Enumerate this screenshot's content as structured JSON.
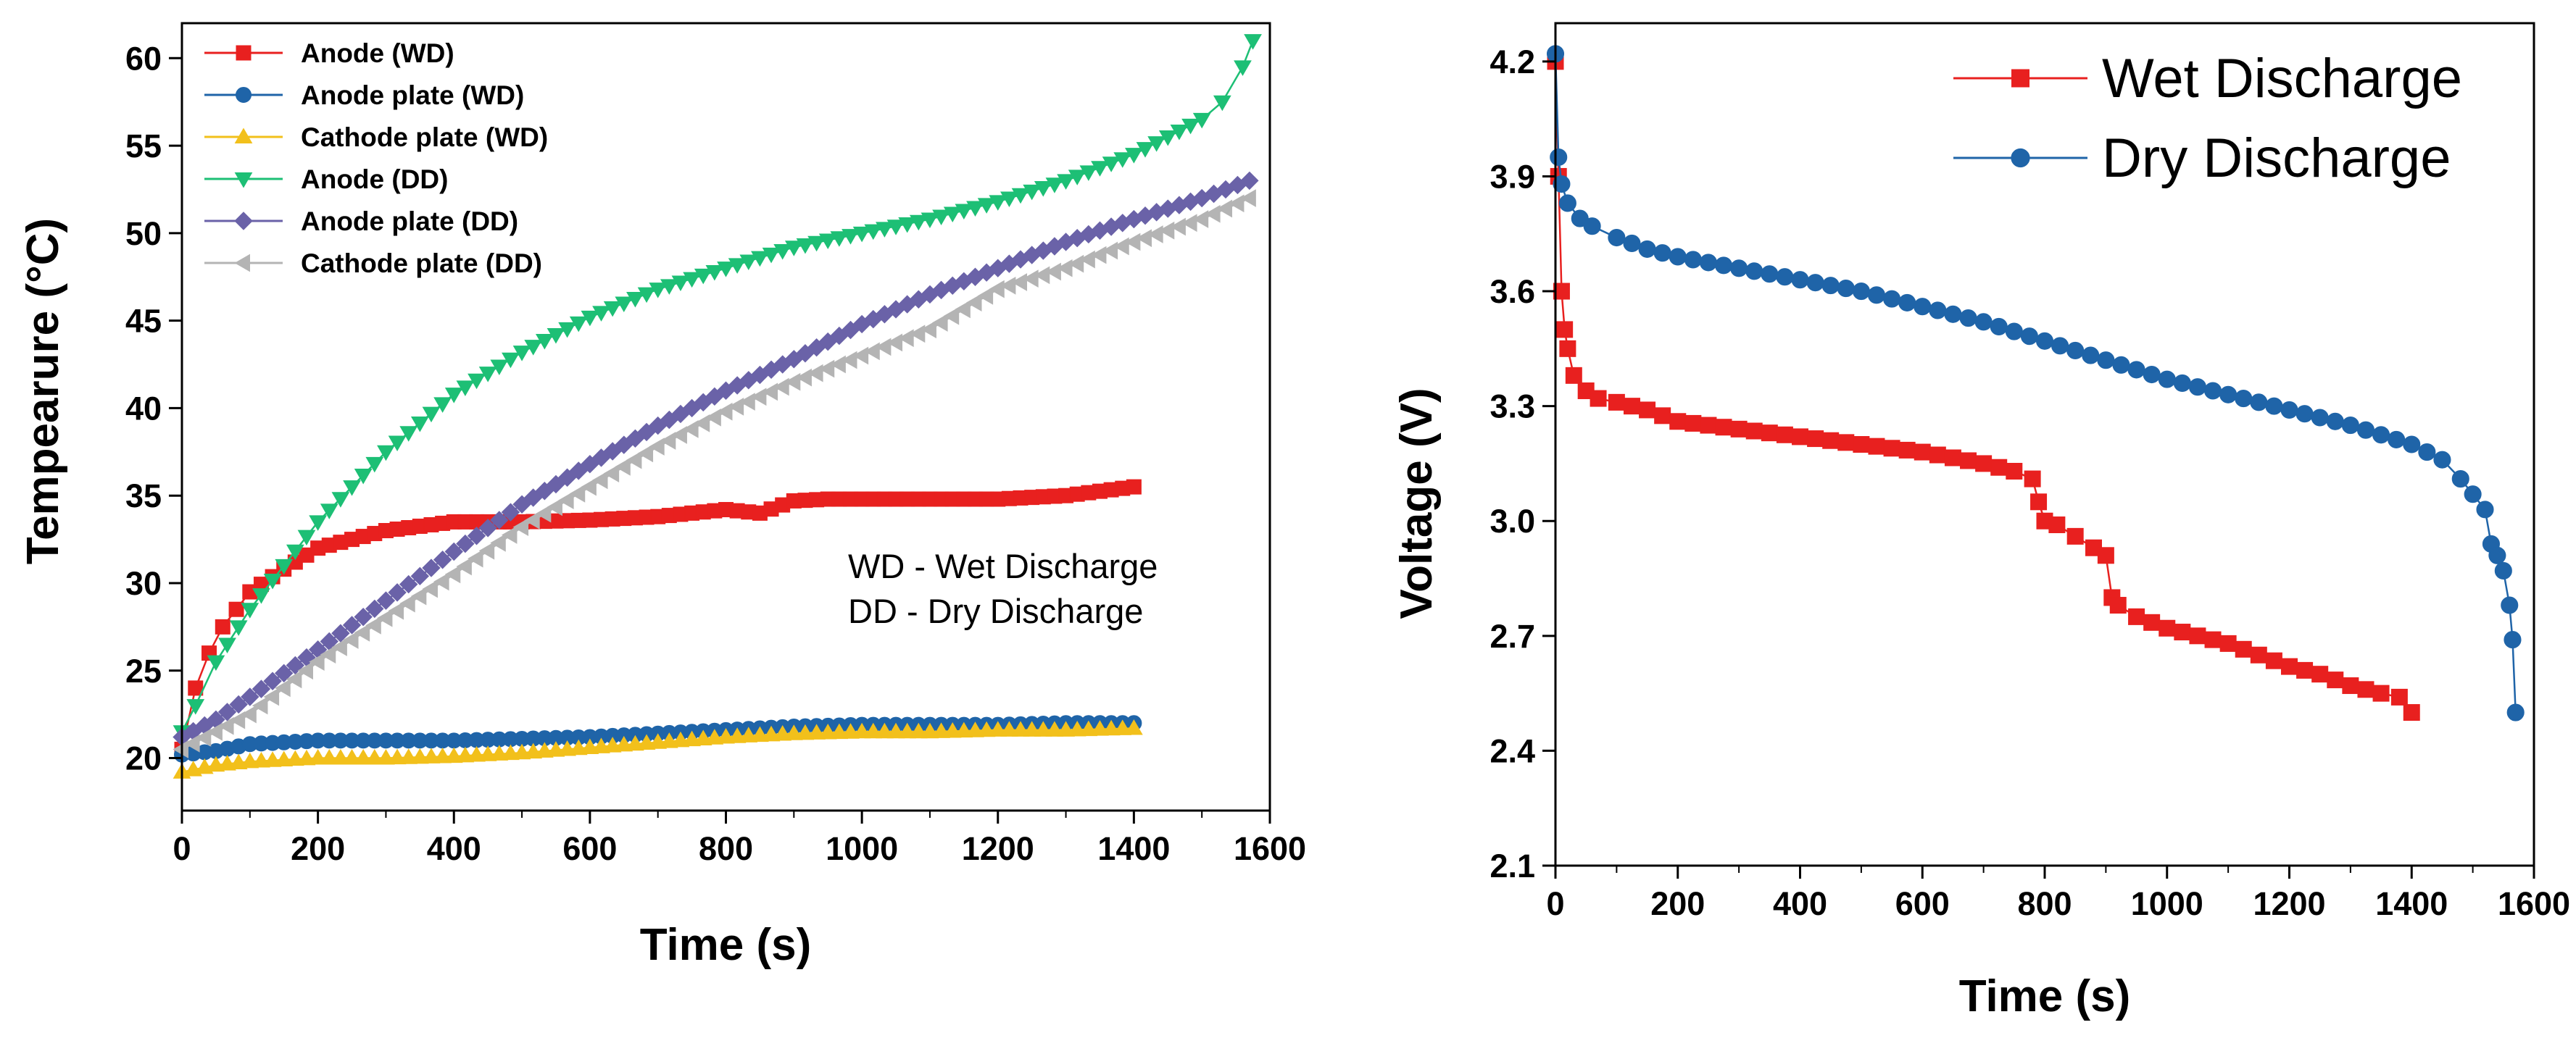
{
  "chart_data": [
    {
      "type": "line",
      "xlabel": "Time (s)",
      "ylabel": "Tempearure (°C)",
      "xlim": [
        0,
        1600
      ],
      "ylim": [
        17,
        62
      ],
      "xticks": [
        0,
        200,
        400,
        600,
        800,
        1000,
        1200,
        1400,
        1600
      ],
      "yticks": [
        20,
        25,
        30,
        35,
        40,
        45,
        50,
        55,
        60
      ],
      "legend_position": "top-left",
      "annotations": [
        "WD - Wet Discharge",
        "DD - Dry Discharge"
      ],
      "series": [
        {
          "name": "Anode (WD)",
          "color": "#e8201f",
          "marker": "square",
          "x": [
            0,
            20,
            40,
            60,
            80,
            100,
            150,
            200,
            300,
            400,
            500,
            600,
            700,
            750,
            800,
            850,
            900,
            950,
            1000,
            1100,
            1200,
            1300,
            1400
          ],
          "y": [
            20.5,
            24,
            26,
            27.5,
            28.5,
            29.5,
            30.8,
            32,
            33,
            33.5,
            33.5,
            33.6,
            33.8,
            34,
            34.2,
            34,
            34.7,
            34.8,
            34.8,
            34.8,
            34.8,
            35,
            35.5
          ]
        },
        {
          "name": "Anode plate (WD)",
          "color": "#1f64a8",
          "marker": "circle",
          "x": [
            0,
            50,
            100,
            200,
            300,
            400,
            500,
            600,
            700,
            800,
            900,
            1000,
            1100,
            1200,
            1300,
            1400
          ],
          "y": [
            20.2,
            20.4,
            20.8,
            21,
            21,
            21,
            21.1,
            21.2,
            21.4,
            21.6,
            21.8,
            21.9,
            21.9,
            21.9,
            22,
            22
          ]
        },
        {
          "name": "Cathode plate (WD)",
          "color": "#f2c01b",
          "marker": "triangle-up",
          "x": [
            0,
            50,
            100,
            200,
            300,
            400,
            500,
            600,
            700,
            800,
            900,
            1000,
            1100,
            1200,
            1300,
            1400
          ],
          "y": [
            19.2,
            19.6,
            19.8,
            20,
            20,
            20.1,
            20.3,
            20.6,
            20.9,
            21.2,
            21.4,
            21.5,
            21.5,
            21.6,
            21.6,
            21.7
          ]
        },
        {
          "name": "Anode (DD)",
          "color": "#1dbf75",
          "marker": "triangle-down",
          "x": [
            0,
            20,
            50,
            100,
            150,
            200,
            300,
            400,
            500,
            600,
            700,
            800,
            900,
            1000,
            1100,
            1200,
            1300,
            1400,
            1450,
            1500,
            1530,
            1560,
            1575
          ],
          "y": [
            21.5,
            23,
            25.5,
            28.5,
            31,
            33.5,
            37.5,
            40.8,
            43.2,
            45.2,
            46.8,
            48,
            49.2,
            50,
            50.8,
            51.8,
            53,
            54.5,
            55.5,
            56.5,
            57.5,
            59.5,
            61
          ]
        },
        {
          "name": "Anode plate (DD)",
          "color": "#6a62a8",
          "marker": "diamond",
          "x": [
            0,
            50,
            100,
            200,
            300,
            400,
            500,
            600,
            700,
            800,
            900,
            1000,
            1100,
            1200,
            1300,
            1400,
            1500,
            1570
          ],
          "y": [
            21.2,
            22.2,
            23.5,
            26.2,
            29,
            31.8,
            34.5,
            36.8,
            39,
            41,
            42.8,
            44.8,
            46.5,
            48,
            49.5,
            50.8,
            52,
            53
          ]
        },
        {
          "name": "Cathode plate (DD)",
          "color": "#b4b4b4",
          "marker": "triangle-left",
          "x": [
            0,
            50,
            100,
            200,
            300,
            400,
            500,
            600,
            700,
            800,
            900,
            1000,
            1100,
            1200,
            1300,
            1400,
            1500,
            1570
          ],
          "y": [
            20.5,
            21.5,
            22.5,
            25.5,
            28,
            30.5,
            33.2,
            35.5,
            37.8,
            39.8,
            41.5,
            43,
            44.5,
            46.8,
            48,
            49.5,
            50.8,
            52
          ]
        }
      ]
    },
    {
      "type": "line",
      "xlabel": "Time (s)",
      "ylabel": "Voltage (V)",
      "xlim": [
        0,
        1600
      ],
      "ylim": [
        2.1,
        4.3
      ],
      "xticks": [
        0,
        200,
        400,
        600,
        800,
        1000,
        1200,
        1400,
        1600
      ],
      "yticks": [
        "2.1",
        "2.4",
        "2.7",
        "3.0",
        "3.3",
        "3.6",
        "3.9",
        "4.2"
      ],
      "legend_position": "top-right",
      "series": [
        {
          "name": "Wet Discharge",
          "color": "#e8201f",
          "marker": "square",
          "x": [
            0,
            5,
            10,
            15,
            20,
            30,
            50,
            70,
            100,
            150,
            200,
            300,
            400,
            500,
            600,
            700,
            750,
            780,
            790,
            800,
            820,
            850,
            880,
            900,
            910,
            920,
            950,
            1000,
            1050,
            1100,
            1150,
            1200,
            1250,
            1300,
            1350,
            1380,
            1400
          ],
          "y": [
            4.2,
            3.9,
            3.6,
            3.5,
            3.45,
            3.38,
            3.34,
            3.32,
            3.31,
            3.29,
            3.26,
            3.24,
            3.22,
            3.2,
            3.18,
            3.15,
            3.13,
            3.11,
            3.05,
            3.0,
            2.99,
            2.96,
            2.93,
            2.91,
            2.8,
            2.78,
            2.75,
            2.72,
            2.7,
            2.68,
            2.65,
            2.62,
            2.6,
            2.57,
            2.55,
            2.54,
            2.5
          ]
        },
        {
          "name": "Dry Discharge",
          "color": "#1f64a8",
          "marker": "circle",
          "x": [
            0,
            5,
            10,
            20,
            40,
            60,
            100,
            150,
            200,
            300,
            400,
            500,
            600,
            700,
            800,
            900,
            1000,
            1100,
            1200,
            1300,
            1400,
            1450,
            1480,
            1500,
            1520,
            1530,
            1540,
            1550,
            1560,
            1565,
            1570
          ],
          "y": [
            4.22,
            3.95,
            3.88,
            3.83,
            3.79,
            3.77,
            3.74,
            3.71,
            3.69,
            3.66,
            3.63,
            3.6,
            3.56,
            3.52,
            3.47,
            3.42,
            3.37,
            3.33,
            3.29,
            3.25,
            3.2,
            3.16,
            3.11,
            3.07,
            3.03,
            2.94,
            2.91,
            2.87,
            2.78,
            2.69,
            2.5
          ]
        }
      ]
    }
  ]
}
